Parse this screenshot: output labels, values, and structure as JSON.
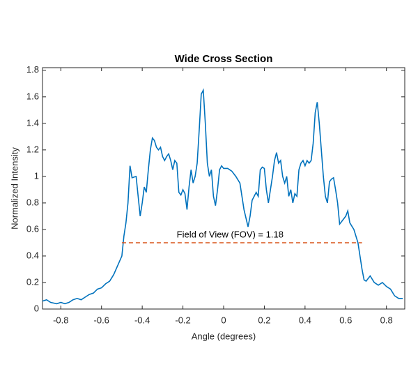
{
  "chart_data": {
    "type": "line",
    "title": "Wide Cross Section",
    "x_label": "Angle (degrees)",
    "y_label": "Normalized Intensity",
    "xlim": [
      -0.89,
      0.89
    ],
    "ylim": [
      0,
      1.82
    ],
    "xticks": [
      -0.8,
      -0.6,
      -0.4,
      -0.2,
      0,
      0.2,
      0.4,
      0.6,
      0.8
    ],
    "yticks": [
      0,
      0.2,
      0.4,
      0.6,
      0.8,
      1,
      1.2,
      1.4,
      1.6,
      1.8
    ],
    "grid": false,
    "series": [
      {
        "color": "#0072bd",
        "x": [
          -0.89,
          -0.87,
          -0.85,
          -0.82,
          -0.8,
          -0.78,
          -0.76,
          -0.74,
          -0.72,
          -0.7,
          -0.68,
          -0.66,
          -0.64,
          -0.62,
          -0.6,
          -0.58,
          -0.56,
          -0.54,
          -0.52,
          -0.5,
          -0.49,
          -0.48,
          -0.47,
          -0.46,
          -0.45,
          -0.43,
          -0.42,
          -0.41,
          -0.4,
          -0.39,
          -0.38,
          -0.37,
          -0.36,
          -0.35,
          -0.34,
          -0.33,
          -0.32,
          -0.31,
          -0.3,
          -0.29,
          -0.28,
          -0.27,
          -0.26,
          -0.25,
          -0.24,
          -0.23,
          -0.22,
          -0.21,
          -0.2,
          -0.19,
          -0.18,
          -0.17,
          -0.16,
          -0.15,
          -0.14,
          -0.13,
          -0.12,
          -0.11,
          -0.1,
          -0.09,
          -0.08,
          -0.07,
          -0.06,
          -0.05,
          -0.04,
          -0.03,
          -0.02,
          -0.01,
          0,
          0.02,
          0.04,
          0.06,
          0.08,
          0.1,
          0.12,
          0.13,
          0.14,
          0.15,
          0.16,
          0.17,
          0.18,
          0.19,
          0.2,
          0.21,
          0.22,
          0.23,
          0.24,
          0.25,
          0.26,
          0.27,
          0.28,
          0.29,
          0.3,
          0.31,
          0.32,
          0.33,
          0.34,
          0.35,
          0.36,
          0.37,
          0.38,
          0.39,
          0.4,
          0.41,
          0.42,
          0.43,
          0.44,
          0.45,
          0.46,
          0.47,
          0.48,
          0.49,
          0.5,
          0.51,
          0.52,
          0.53,
          0.54,
          0.55,
          0.56,
          0.57,
          0.58,
          0.6,
          0.61,
          0.62,
          0.64,
          0.66,
          0.67,
          0.68,
          0.69,
          0.7,
          0.72,
          0.74,
          0.76,
          0.78,
          0.8,
          0.82,
          0.84,
          0.86,
          0.88
        ],
        "values": [
          0.06,
          0.07,
          0.05,
          0.04,
          0.05,
          0.04,
          0.05,
          0.07,
          0.08,
          0.07,
          0.09,
          0.11,
          0.12,
          0.15,
          0.16,
          0.19,
          0.21,
          0.26,
          0.33,
          0.4,
          0.55,
          0.65,
          0.8,
          1.08,
          0.99,
          1.0,
          0.85,
          0.7,
          0.8,
          0.92,
          0.88,
          1.05,
          1.2,
          1.29,
          1.27,
          1.22,
          1.2,
          1.22,
          1.15,
          1.12,
          1.15,
          1.17,
          1.12,
          1.05,
          1.12,
          1.1,
          0.88,
          0.86,
          0.9,
          0.87,
          0.75,
          0.92,
          1.05,
          0.95,
          1.0,
          1.1,
          1.35,
          1.62,
          1.65,
          1.4,
          1.1,
          1.0,
          1.05,
          0.85,
          0.78,
          0.9,
          1.05,
          1.08,
          1.06,
          1.06,
          1.04,
          1.0,
          0.95,
          0.75,
          0.62,
          0.7,
          0.82,
          0.85,
          0.88,
          0.85,
          1.05,
          1.07,
          1.06,
          0.9,
          0.8,
          0.9,
          1.0,
          1.12,
          1.18,
          1.1,
          1.12,
          1.0,
          0.95,
          1.0,
          0.85,
          0.9,
          0.8,
          0.87,
          0.85,
          1.05,
          1.1,
          1.12,
          1.08,
          1.12,
          1.1,
          1.12,
          1.25,
          1.48,
          1.56,
          1.4,
          1.2,
          1.0,
          0.85,
          0.8,
          0.96,
          0.98,
          0.99,
          0.9,
          0.8,
          0.64,
          0.66,
          0.7,
          0.74,
          0.65,
          0.6,
          0.5,
          0.4,
          0.3,
          0.22,
          0.21,
          0.25,
          0.2,
          0.18,
          0.2,
          0.17,
          0.15,
          0.1,
          0.08,
          0.08
        ]
      },
      {
        "color": "#d95319",
        "dashed": true,
        "x": [
          -0.5,
          0.68
        ],
        "values": [
          0.5,
          0.5
        ]
      }
    ],
    "annotation": "Field of View (FOV) = 1.18"
  }
}
